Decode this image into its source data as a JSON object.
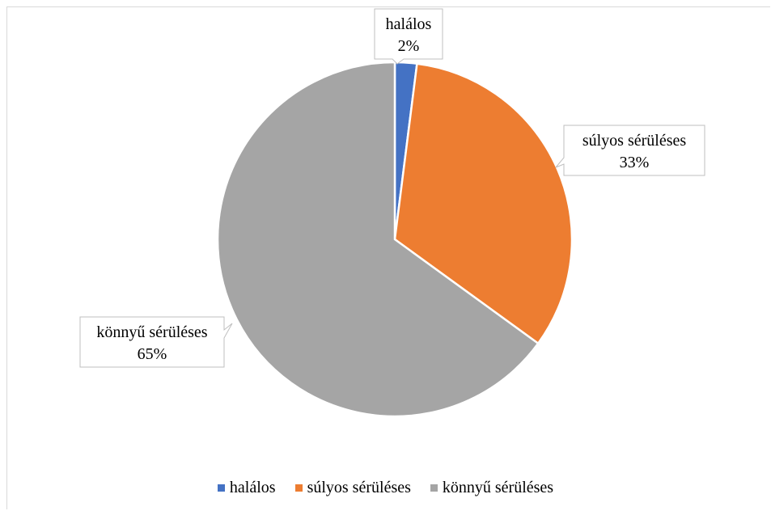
{
  "chart_data": {
    "type": "pie",
    "title": "",
    "slices": [
      {
        "label": "halálos",
        "value": 2,
        "pct_label": "2%",
        "color": "#4472c4"
      },
      {
        "label": "súlyos sérüléses",
        "value": 33,
        "pct_label": "33%",
        "color": "#ed7d31"
      },
      {
        "label": "könnyű sérüléses",
        "value": 65,
        "pct_label": "65%",
        "color": "#a5a5a5"
      }
    ],
    "legend_position": "bottom"
  }
}
